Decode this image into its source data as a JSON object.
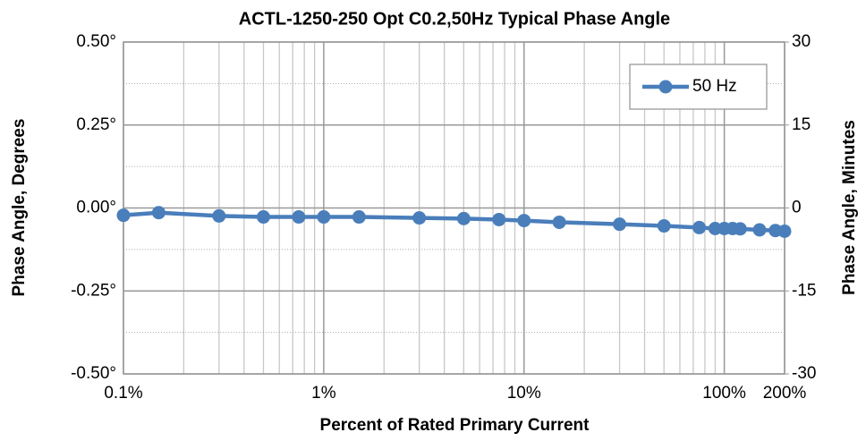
{
  "chart_data": {
    "type": "line",
    "title": "ACTL-1250-250 Opt C0.2,50Hz Typical Phase Angle",
    "x_label": "Percent of Rated Primary Current",
    "y_label": "Phase Angle, Degrees",
    "y2_label": "Phase Angle, Minutes",
    "x": [
      0.1,
      0.15,
      0.3,
      0.5,
      0.75,
      1,
      1.5,
      3,
      5,
      7.5,
      10,
      15,
      30,
      50,
      75,
      90,
      100,
      110,
      120,
      150,
      180,
      200
    ],
    "series": [
      {
        "name": "50 Hz",
        "color": "#4a7ebb",
        "values": [
          -0.022,
          -0.014,
          -0.024,
          -0.027,
          -0.027,
          -0.027,
          -0.027,
          -0.03,
          -0.032,
          -0.035,
          -0.038,
          -0.043,
          -0.049,
          -0.054,
          -0.059,
          -0.062,
          -0.062,
          -0.062,
          -0.063,
          -0.066,
          -0.068,
          -0.07
        ]
      }
    ],
    "xscale": "log",
    "xlim": [
      0.1,
      200
    ],
    "xticks": [
      {
        "value": 0.1,
        "label": "0.1%"
      },
      {
        "value": 1,
        "label": "1%"
      },
      {
        "value": 10,
        "label": "10%"
      },
      {
        "value": 100,
        "label": "100%"
      },
      {
        "value": 200,
        "label": "200%"
      }
    ],
    "ylim": [
      -0.5,
      0.5
    ],
    "yticks": [
      {
        "value": -0.5,
        "label": "-0.50°"
      },
      {
        "value": -0.25,
        "label": "-0.25°"
      },
      {
        "value": 0,
        "label": "0.00°"
      },
      {
        "value": 0.25,
        "label": "0.25°"
      },
      {
        "value": 0.5,
        "label": "0.50°"
      }
    ],
    "y2lim": [
      -30,
      30
    ],
    "y2ticks": [
      -30,
      -15,
      0,
      15,
      30
    ],
    "grid": true,
    "legend": "upper right"
  }
}
